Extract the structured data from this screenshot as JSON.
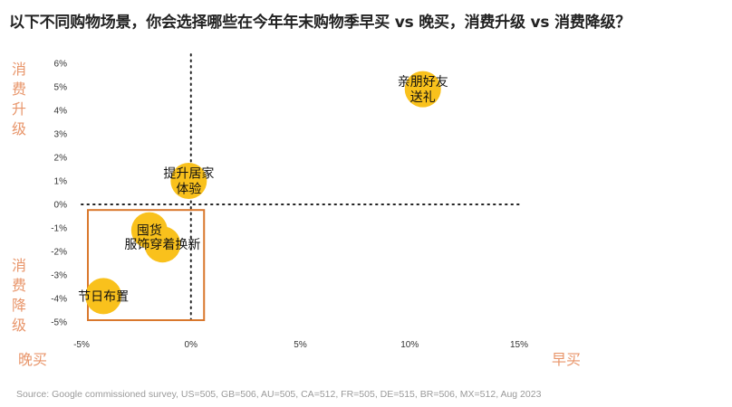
{
  "title": "以下不同购物场景，你会选择哪些在今年年末购物季早买 vs 晚买，消费升级 vs 消费降级？",
  "source": "Source: Google commissioned survey, US=505, GB=506, AU=505, CA=512, FR=505, DE=515, BR=506, MX=512, Aug 2023",
  "quadrant_labels": {
    "top": "消费升级",
    "bottom": "消费降级",
    "left": "晚买",
    "right": "早买"
  },
  "colors": {
    "bubble": "#f9c11c",
    "highlight_box": "#d9782d",
    "side_text": "#e8956a",
    "title": "#222222"
  },
  "chart_data": {
    "type": "scatter",
    "title": "以下不同购物场景，你会选择哪些在今年年末购物季早买 vs 晚买，消费升级 vs 消费降级？",
    "xlabel": "晚买 ← → 早买",
    "ylabel": "消费降级 ← → 消费升级",
    "xlim": [
      -5,
      15
    ],
    "ylim": [
      -5,
      6
    ],
    "x_ticks": [
      -5,
      0,
      5,
      10,
      15
    ],
    "x_tick_labels": [
      "-5%",
      "0%",
      "5%",
      "10%",
      "15%"
    ],
    "y_ticks": [
      6,
      5,
      4,
      3,
      2,
      1,
      0,
      -1,
      -2,
      -3,
      -4,
      -5
    ],
    "y_tick_labels": [
      "6%",
      "5%",
      "4%",
      "3%",
      "2%",
      "1%",
      "0%",
      "-1%",
      "-2%",
      "-3%",
      "-4%",
      "-5%"
    ],
    "points": [
      {
        "label": "亲朋好友送礼",
        "label_lines": [
          "亲朋好友",
          "送礼"
        ],
        "x": 10.6,
        "y": 4.9
      },
      {
        "label": "提升居家体验",
        "label_lines": [
          "提升居家",
          "体验"
        ],
        "x": -0.1,
        "y": 1.0
      },
      {
        "label": "囤货",
        "label_lines": [
          "囤货"
        ],
        "x": -1.9,
        "y": -1.1
      },
      {
        "label": "服饰穿着换新",
        "label_lines": [
          "服饰穿着换新"
        ],
        "x": -1.3,
        "y": -1.7
      },
      {
        "label": "节日布置",
        "label_lines": [
          "节日布置"
        ],
        "x": -4.0,
        "y": -3.9
      }
    ],
    "highlight_region": {
      "x": [
        -5,
        0.6
      ],
      "y": [
        -5,
        -0.2
      ]
    }
  }
}
